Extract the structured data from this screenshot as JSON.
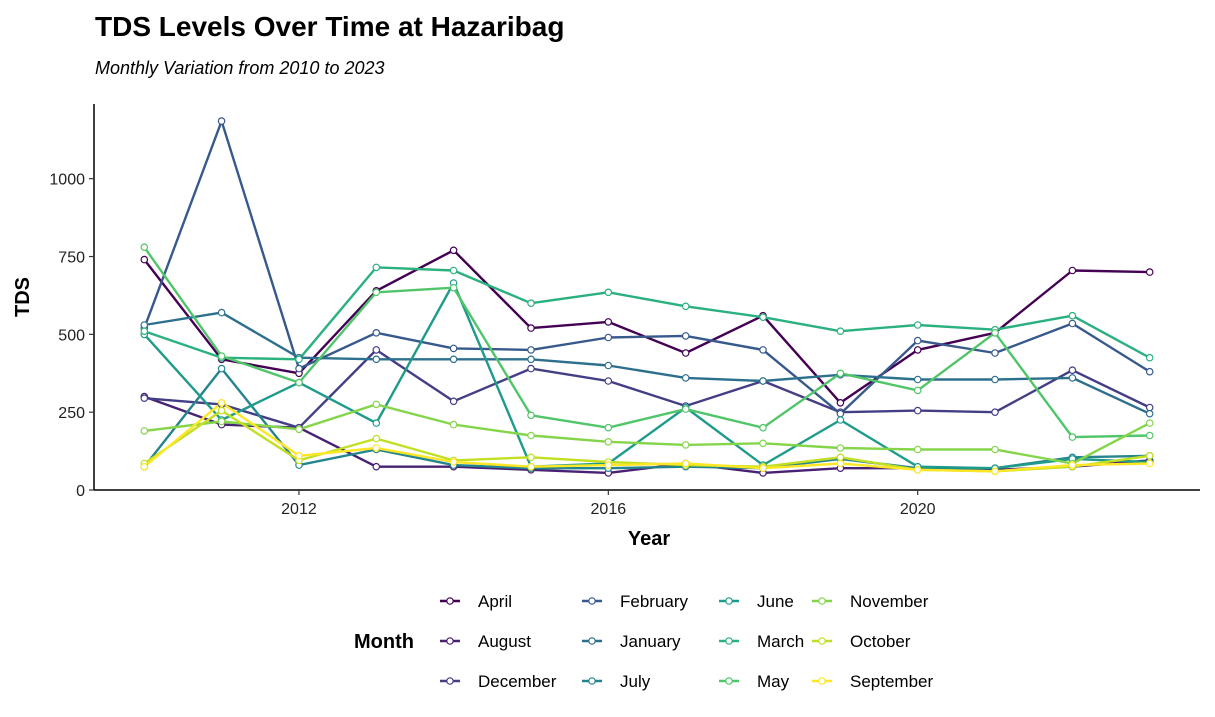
{
  "chart_data": {
    "type": "line",
    "title": "TDS Levels Over Time at Hazaribag",
    "subtitle": "Monthly Variation from 2010 to 2023",
    "xlabel": "Year",
    "ylabel": "TDS",
    "xlim": [
      2009.35,
      2023.65
    ],
    "ylim": [
      0,
      1240
    ],
    "xticks": [
      2012,
      2016,
      2020
    ],
    "xtick_labels": [
      "2012",
      "2016",
      "2020"
    ],
    "yticks": [
      0,
      250,
      500,
      750,
      1000
    ],
    "ytick_labels": [
      "0",
      "250",
      "500",
      "750",
      "1000"
    ],
    "grid": false,
    "legend": {
      "title": "Month",
      "position": "bottom",
      "columns": 4
    },
    "x": [
      2010,
      2011,
      2012,
      2013,
      2014,
      2015,
      2016,
      2017,
      2018,
      2019,
      2020,
      2021,
      2022,
      2023
    ],
    "series": [
      {
        "name": "April",
        "color": "#440154",
        "values": [
          740,
          420,
          375,
          640,
          770,
          520,
          540,
          440,
          560,
          280,
          450,
          505,
          705,
          700
        ]
      },
      {
        "name": "August",
        "color": "#482173",
        "values": [
          300,
          210,
          200,
          75,
          75,
          65,
          55,
          85,
          55,
          70,
          70,
          65,
          75,
          95
        ]
      },
      {
        "name": "December",
        "color": "#433E85",
        "values": [
          295,
          275,
          200,
          450,
          285,
          390,
          350,
          270,
          350,
          250,
          255,
          250,
          385,
          265
        ]
      },
      {
        "name": "February",
        "color": "#38598C",
        "values": [
          520,
          1185,
          390,
          505,
          455,
          450,
          490,
          495,
          450,
          245,
          480,
          440,
          535,
          380
        ]
      },
      {
        "name": "January",
        "color": "#2D708E",
        "values": [
          530,
          570,
          425,
          420,
          420,
          420,
          400,
          360,
          350,
          370,
          355,
          355,
          360,
          245
        ]
      },
      {
        "name": "July",
        "color": "#25858E",
        "values": [
          75,
          390,
          80,
          130,
          80,
          70,
          70,
          75,
          70,
          100,
          70,
          70,
          105,
          110
        ]
      },
      {
        "name": "June",
        "color": "#1E9B8A",
        "values": [
          500,
          225,
          345,
          215,
          665,
          75,
          85,
          265,
          80,
          225,
          75,
          70,
          100,
          90
        ]
      },
      {
        "name": "March",
        "color": "#2BB07F",
        "values": [
          510,
          425,
          420,
          715,
          705,
          600,
          635,
          590,
          555,
          510,
          530,
          515,
          560,
          425
        ]
      },
      {
        "name": "May",
        "color": "#51C56A",
        "values": [
          780,
          430,
          345,
          635,
          650,
          240,
          200,
          260,
          200,
          375,
          320,
          505,
          170,
          175
        ]
      },
      {
        "name": "November",
        "color": "#85D54A",
        "values": [
          190,
          220,
          195,
          275,
          210,
          175,
          155,
          145,
          150,
          135,
          130,
          130,
          85,
          215
        ]
      },
      {
        "name": "October",
        "color": "#C2DF23",
        "values": [
          85,
          255,
          95,
          165,
          95,
          105,
          90,
          80,
          75,
          105,
          65,
          60,
          75,
          110
        ]
      },
      {
        "name": "September",
        "color": "#FDE725",
        "values": [
          75,
          280,
          110,
          135,
          90,
          75,
          80,
          85,
          70,
          85,
          65,
          60,
          80,
          85
        ]
      }
    ]
  }
}
